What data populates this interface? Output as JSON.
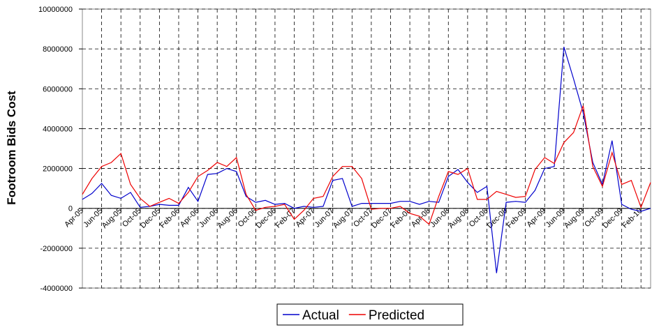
{
  "chart_data": {
    "type": "line",
    "y_label": "Footroom Bids Cost",
    "categories": [
      "Apr-05",
      null,
      "Jun-05",
      null,
      "Aug-05",
      null,
      "Oct-05",
      null,
      "Dec-05",
      null,
      "Feb-06",
      null,
      "Apr-06",
      null,
      "Jun-06",
      null,
      "Aug-06",
      null,
      "Oct-06",
      null,
      "Dec-06",
      null,
      "Feb-07",
      null,
      "Apr-07",
      null,
      "Jun-07",
      null,
      "Aug-07",
      null,
      "Oct-07",
      null,
      "Dec-07",
      null,
      "Feb-08",
      null,
      "Apr-08",
      null,
      "Jun-08",
      null,
      "Aug-08",
      null,
      "Oct-08",
      null,
      "Dec-08",
      null,
      "Feb-09",
      null,
      "Apr-09",
      null,
      "Jun-09",
      null,
      "Aug-09",
      null,
      "Oct-09",
      null,
      "Dec-09",
      null,
      "Feb-10",
      null
    ],
    "series": [
      {
        "name": "Actual",
        "color": "#0000cc",
        "values": [
          450000,
          750000,
          1250000,
          650000,
          500000,
          800000,
          50000,
          100000,
          200000,
          150000,
          150000,
          1050000,
          350000,
          1700000,
          1750000,
          2000000,
          1850000,
          600000,
          300000,
          400000,
          200000,
          250000,
          0,
          100000,
          50000,
          100000,
          1400000,
          1500000,
          100000,
          250000,
          250000,
          250000,
          250000,
          350000,
          350000,
          200000,
          350000,
          300000,
          1600000,
          1950000,
          1300000,
          800000,
          1100000,
          -3250000,
          300000,
          350000,
          300000,
          900000,
          2000000,
          2100000,
          8100000,
          6500000,
          4800000,
          2300000,
          1200000,
          3400000,
          200000,
          -50000,
          -150000,
          0
        ]
      },
      {
        "name": "Predicted",
        "color": "#ee0000",
        "values": [
          700000,
          1500000,
          2100000,
          2300000,
          2750000,
          1200000,
          500000,
          100000,
          300000,
          500000,
          250000,
          800000,
          1600000,
          1900000,
          2300000,
          2100000,
          2550000,
          700000,
          -100000,
          50000,
          100000,
          200000,
          -550000,
          -100000,
          500000,
          600000,
          1600000,
          2100000,
          2100000,
          1500000,
          -50000,
          0,
          0,
          100000,
          -250000,
          -400000,
          -800000,
          600000,
          1850000,
          1700000,
          2000000,
          450000,
          450000,
          850000,
          700000,
          550000,
          600000,
          1950000,
          2550000,
          2250000,
          3300000,
          3800000,
          5150000,
          2100000,
          1100000,
          2800000,
          1200000,
          1400000,
          50000,
          1300000
        ]
      }
    ],
    "ylim": [
      -4000000,
      10000000
    ],
    "yticks": [
      -4000000,
      -2000000,
      0,
      2000000,
      4000000,
      6000000,
      8000000,
      10000000
    ],
    "grid": true,
    "legend": "bottom"
  }
}
